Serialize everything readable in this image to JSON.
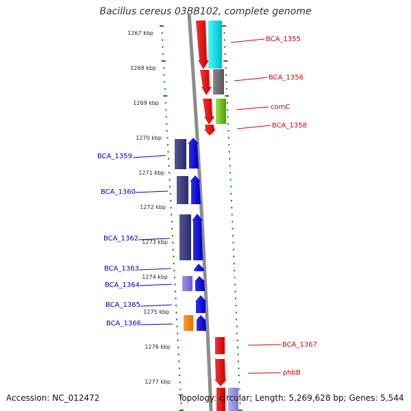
{
  "header": {
    "title": "Bacillus cereus 03BB102, complete genome"
  },
  "footer": {
    "accession": "Accession: NC_012472",
    "topology": "Topology: circular; Length: 5,269,628 bp; Genes: 5,544"
  },
  "ruler": {
    "ticks": [
      "1267 kbp",
      "1268 kbp",
      "1269 kbp",
      "1270 kbp",
      "1271 kbp",
      "1272 kbp",
      "1273 kbp",
      "1274 kbp",
      "1275 kbp",
      "1276 kbp",
      "1277 kbp"
    ]
  },
  "colors": {
    "forward_cds": "#e00000",
    "reverse_cds": "#0000e0",
    "reverse_cog_a": "#3a3a8a",
    "reverse_cog_b": "#7b6fd8",
    "reverse_cog_c": "#ff8c00",
    "forward_cog_a": "#00dede",
    "forward_cog_b": "#6a6a6a",
    "forward_cog_c": "#7fc41f",
    "forward_cog_d": "#9999dd",
    "ruler_tick": "#1a7a1a",
    "backbone": "#808080",
    "forward_label": "#cc0000",
    "reverse_label": "#0000bb"
  },
  "genes": {
    "forward": [
      {
        "id": "BCA_1355",
        "label": "BCA_1355"
      },
      {
        "id": "BCA_1356",
        "label": "BCA_1356"
      },
      {
        "id": "comC",
        "label": "comC"
      },
      {
        "id": "BCA_1358",
        "label": "BCA_1358"
      },
      {
        "id": "BCA_1367",
        "label": "BCA_1367"
      },
      {
        "id": "phbB",
        "label": "phbB"
      }
    ],
    "reverse": [
      {
        "id": "BCA_1359",
        "label": "BCA_1359"
      },
      {
        "id": "BCA_1360",
        "label": "BCA_1360"
      },
      {
        "id": "BCA_1362",
        "label": "BCA_1362"
      },
      {
        "id": "BCA_1363",
        "label": "BCA_1363"
      },
      {
        "id": "BCA_1364",
        "label": "BCA_1364"
      },
      {
        "id": "BCA_1365",
        "label": "BCA_1365"
      },
      {
        "id": "BCA_1366",
        "label": "BCA_1366"
      }
    ]
  }
}
